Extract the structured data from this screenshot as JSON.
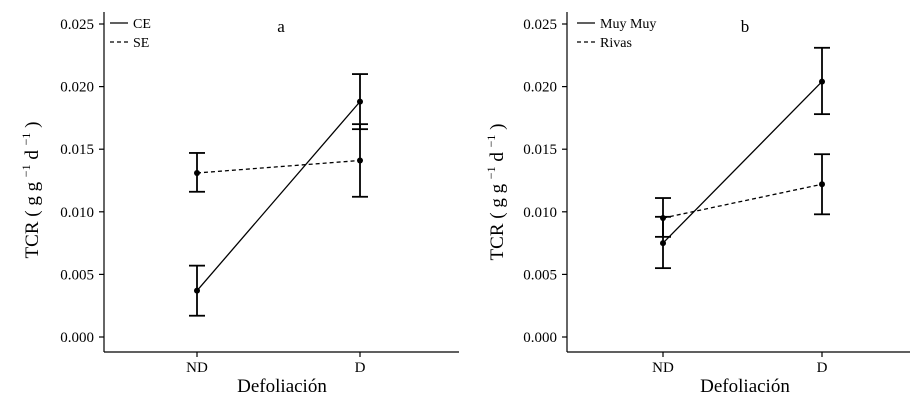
{
  "chart_data": [
    {
      "type": "line",
      "panel_label": "a",
      "categories": [
        "ND",
        "D"
      ],
      "xlabel": "Defoliación",
      "ylabel": {
        "main": "TCR",
        "unit_prefix": "g g",
        "exp1": "−1",
        "unit_mid": "d",
        "exp2": "−1"
      },
      "ylim": [
        0,
        0.025
      ],
      "yticks": [
        "0.000",
        "0.005",
        "0.010",
        "0.015",
        "0.020",
        "0.025"
      ],
      "grid": false,
      "legend_position": "top-left",
      "series": [
        {
          "name": "CE",
          "line_style": "solid",
          "values": [
            0.0037,
            0.0188
          ],
          "err_low": [
            0.0017,
            0.0166
          ],
          "err_high": [
            0.0057,
            0.021
          ]
        },
        {
          "name": "SE",
          "line_style": "dashed",
          "values": [
            0.0131,
            0.0141
          ],
          "err_low": [
            0.0116,
            0.0112
          ],
          "err_high": [
            0.0147,
            0.017
          ]
        }
      ]
    },
    {
      "type": "line",
      "panel_label": "b",
      "categories": [
        "ND",
        "D"
      ],
      "xlabel": "Defoliación",
      "ylabel": {
        "main": "TCR",
        "unit_prefix": "g g",
        "exp1": "−1",
        "unit_mid": "d",
        "exp2": "−1"
      },
      "ylim": [
        0,
        0.025
      ],
      "yticks": [
        "0.000",
        "0.005",
        "0.010",
        "0.015",
        "0.020",
        "0.025"
      ],
      "grid": false,
      "legend_position": "top-left",
      "series": [
        {
          "name": "Muy Muy",
          "line_style": "solid",
          "values": [
            0.0075,
            0.0204
          ],
          "err_low": [
            0.0055,
            0.0178
          ],
          "err_high": [
            0.0096,
            0.0231
          ]
        },
        {
          "name": "Rivas",
          "line_style": "dashed",
          "values": [
            0.0095,
            0.0122
          ],
          "err_low": [
            0.008,
            0.0098
          ],
          "err_high": [
            0.0111,
            0.0146
          ]
        }
      ]
    }
  ]
}
